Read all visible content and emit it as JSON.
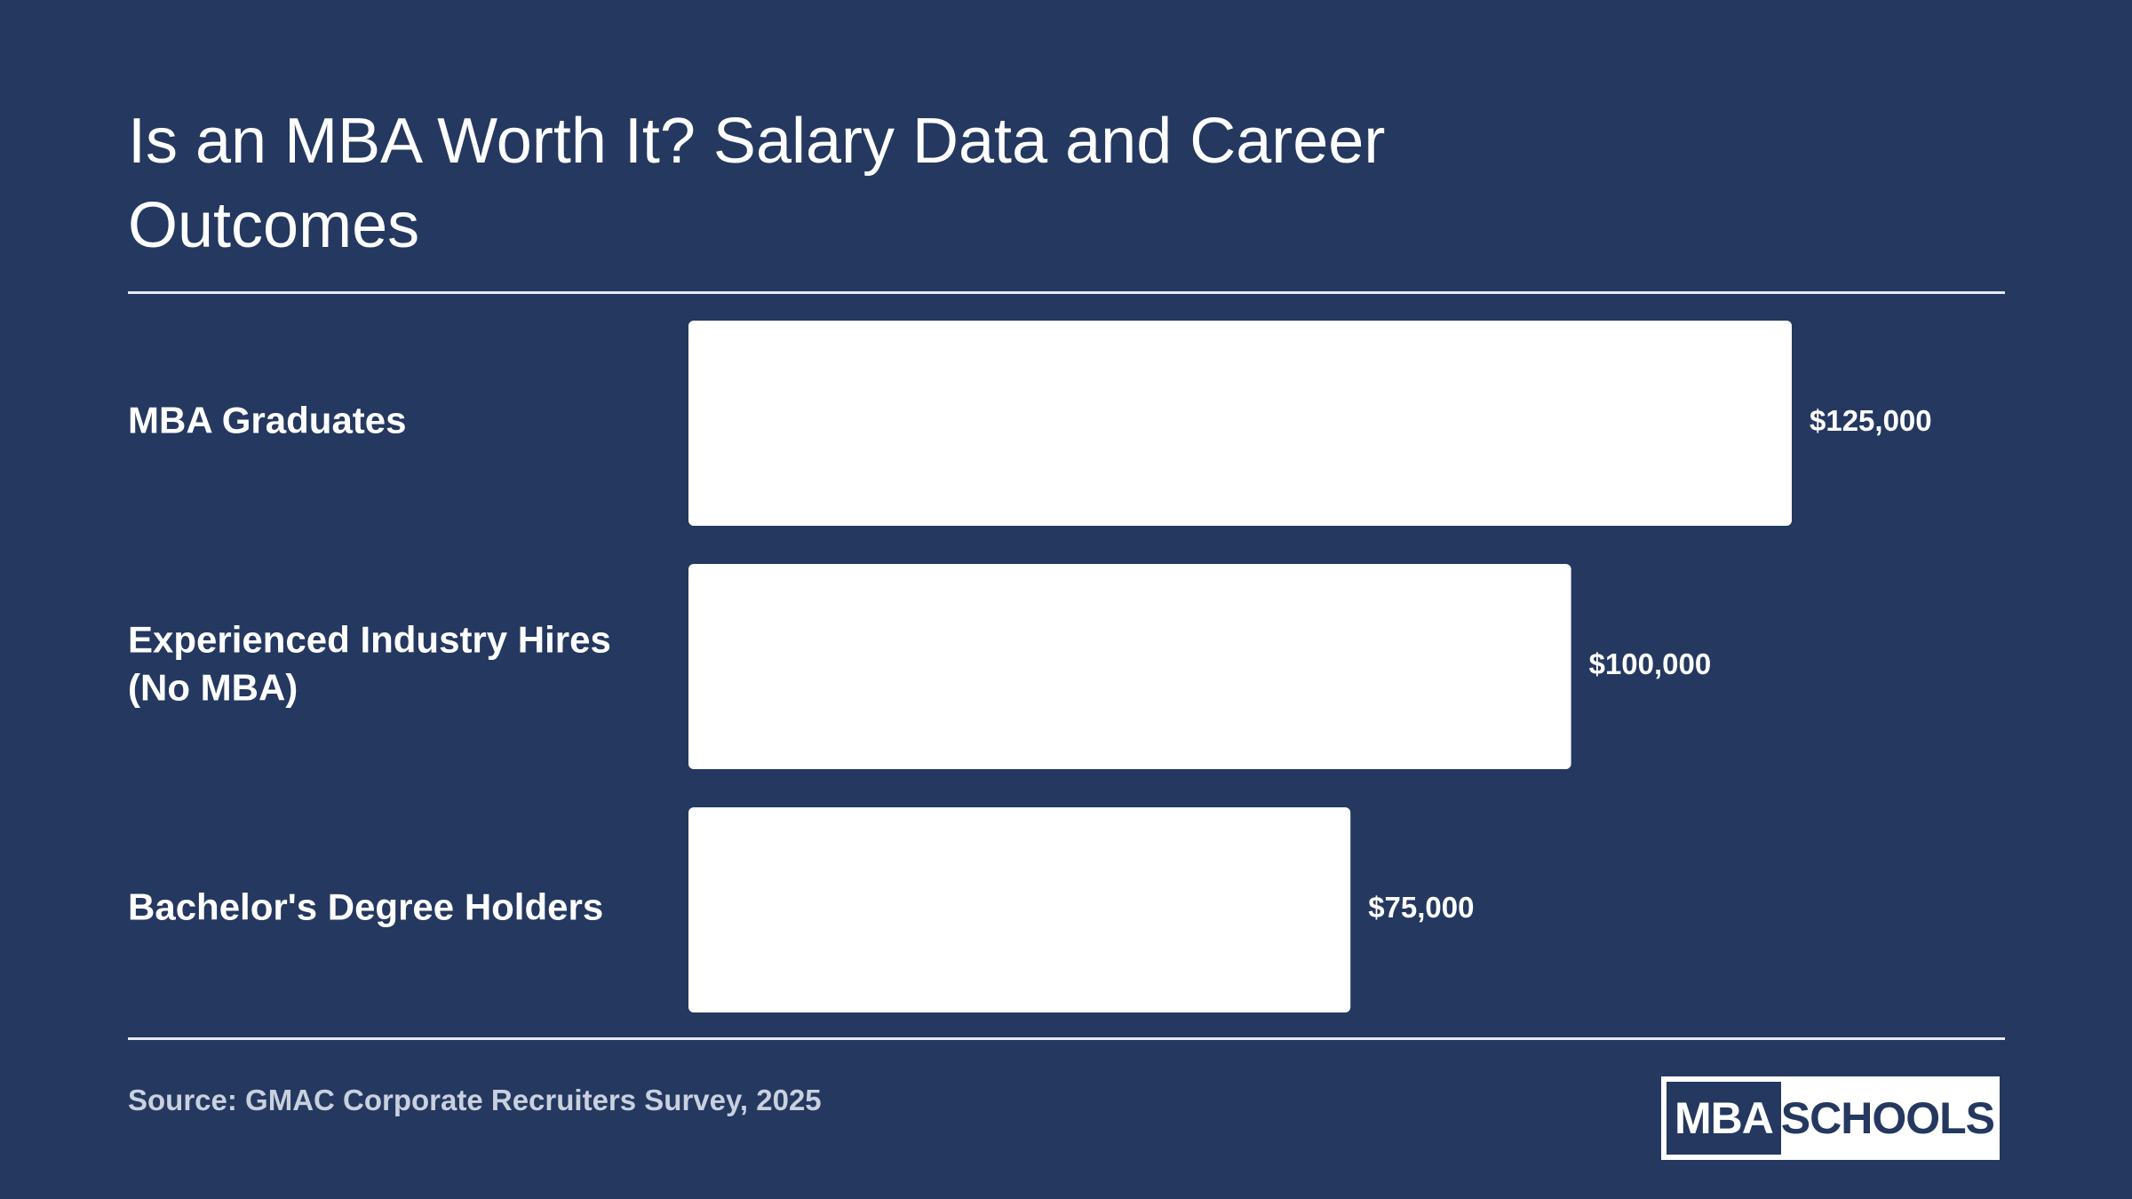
{
  "title": "Is an MBA Worth It? Salary Data and Career Outcomes",
  "source": "Source: GMAC Corporate Recruiters Survey, 2025",
  "logo": {
    "left": "MBA",
    "right": "SCHOOLS"
  },
  "colors": {
    "background": "#243860",
    "bar": "#ffffff",
    "text": "#ffffff",
    "source_text": "#c9d0de"
  },
  "chart_data": {
    "type": "bar",
    "orientation": "horizontal",
    "categories": [
      [
        "MBA Graduates"
      ],
      [
        "Experienced Industry Hires",
        "(No MBA)"
      ],
      [
        "Bachelor's Degree Holders"
      ]
    ],
    "values": [
      125000,
      100000,
      75000
    ],
    "value_labels": [
      "$125,000",
      "$100,000",
      "$75,000"
    ],
    "xlim": [
      0,
      125000
    ],
    "grid": false,
    "legend": "none"
  }
}
